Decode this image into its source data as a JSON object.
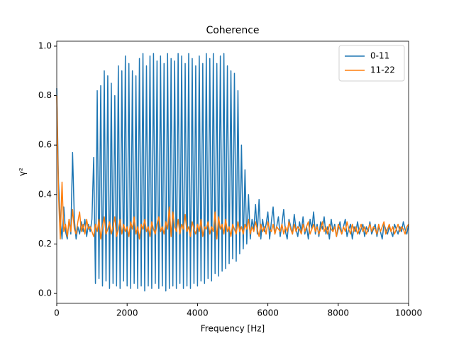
{
  "chart_data": {
    "type": "line",
    "title": "Coherence",
    "xlabel": "Frequency [Hz]",
    "ylabel": "γ²",
    "x": [
      0,
      50,
      100,
      150,
      200,
      250,
      300,
      350,
      400,
      450,
      500,
      550,
      600,
      650,
      700,
      750,
      800,
      850,
      900,
      950,
      1000,
      1050,
      1100,
      1150,
      1200,
      1250,
      1300,
      1350,
      1400,
      1450,
      1500,
      1550,
      1600,
      1650,
      1700,
      1750,
      1800,
      1850,
      1900,
      1950,
      2000,
      2050,
      2100,
      2150,
      2200,
      2250,
      2300,
      2350,
      2400,
      2450,
      2500,
      2550,
      2600,
      2650,
      2700,
      2750,
      2800,
      2850,
      2900,
      2950,
      3000,
      3050,
      3100,
      3150,
      3200,
      3250,
      3300,
      3350,
      3400,
      3450,
      3500,
      3550,
      3600,
      3650,
      3700,
      3750,
      3800,
      3850,
      3900,
      3950,
      4000,
      4050,
      4100,
      4150,
      4200,
      4250,
      4300,
      4350,
      4400,
      4450,
      4500,
      4550,
      4600,
      4650,
      4700,
      4750,
      4800,
      4850,
      4900,
      4950,
      5000,
      5050,
      5100,
      5150,
      5200,
      5250,
      5300,
      5350,
      5400,
      5450,
      5500,
      5550,
      5600,
      5650,
      5700,
      5750,
      5800,
      5850,
      5900,
      5950,
      6000,
      6050,
      6100,
      6150,
      6200,
      6250,
      6300,
      6350,
      6400,
      6450,
      6500,
      6550,
      6600,
      6650,
      6700,
      6750,
      6800,
      6850,
      6900,
      6950,
      7000,
      7050,
      7100,
      7150,
      7200,
      7250,
      7300,
      7350,
      7400,
      7450,
      7500,
      7550,
      7600,
      7650,
      7700,
      7750,
      7800,
      7850,
      7900,
      7950,
      8000,
      8050,
      8100,
      8150,
      8200,
      8250,
      8300,
      8350,
      8400,
      8450,
      8500,
      8550,
      8600,
      8650,
      8700,
      8750,
      8800,
      8850,
      8900,
      8950,
      9000,
      9050,
      9100,
      9150,
      9200,
      9250,
      9300,
      9350,
      9400,
      9450,
      9500,
      9550,
      9600,
      9650,
      9700,
      9750,
      9800,
      9850,
      9900,
      9950,
      10000
    ],
    "series": [
      {
        "name": "0-11",
        "color": "#1f77b4",
        "values": [
          0.83,
          0.45,
          0.3,
          0.22,
          0.35,
          0.25,
          0.22,
          0.3,
          0.24,
          0.57,
          0.3,
          0.22,
          0.27,
          0.24,
          0.29,
          0.25,
          0.3,
          0.23,
          0.28,
          0.25,
          0.3,
          0.55,
          0.04,
          0.82,
          0.06,
          0.84,
          0.03,
          0.9,
          0.05,
          0.88,
          0.02,
          0.85,
          0.04,
          0.8,
          0.03,
          0.92,
          0.02,
          0.9,
          0.05,
          0.96,
          0.03,
          0.93,
          0.02,
          0.9,
          0.04,
          0.88,
          0.02,
          0.95,
          0.03,
          0.97,
          0.01,
          0.92,
          0.03,
          0.96,
          0.02,
          0.97,
          0.04,
          0.94,
          0.02,
          0.96,
          0.03,
          0.93,
          0.01,
          0.97,
          0.02,
          0.95,
          0.03,
          0.94,
          0.02,
          0.97,
          0.04,
          0.96,
          0.02,
          0.93,
          0.03,
          0.97,
          0.02,
          0.95,
          0.04,
          0.92,
          0.03,
          0.96,
          0.05,
          0.93,
          0.04,
          0.97,
          0.06,
          0.95,
          0.05,
          0.97,
          0.08,
          0.93,
          0.07,
          0.96,
          0.09,
          0.97,
          0.1,
          0.92,
          0.12,
          0.9,
          0.14,
          0.89,
          0.13,
          0.82,
          0.16,
          0.6,
          0.18,
          0.5,
          0.2,
          0.4,
          0.22,
          0.3,
          0.26,
          0.36,
          0.24,
          0.38,
          0.22,
          0.3,
          0.25,
          0.28,
          0.33,
          0.22,
          0.29,
          0.35,
          0.24,
          0.27,
          0.31,
          0.23,
          0.28,
          0.34,
          0.25,
          0.22,
          0.3,
          0.27,
          0.24,
          0.32,
          0.26,
          0.23,
          0.29,
          0.25,
          0.31,
          0.24,
          0.27,
          0.22,
          0.3,
          0.26,
          0.33,
          0.24,
          0.28,
          0.23,
          0.29,
          0.26,
          0.31,
          0.24,
          0.27,
          0.22,
          0.3,
          0.25,
          0.28,
          0.23,
          0.26,
          0.29,
          0.24,
          0.27,
          0.3,
          0.23,
          0.26,
          0.28,
          0.22,
          0.27,
          0.25,
          0.29,
          0.24,
          0.26,
          0.28,
          0.23,
          0.27,
          0.25,
          0.29,
          0.24,
          0.26,
          0.28,
          0.23,
          0.27,
          0.25,
          0.22,
          0.28,
          0.26,
          0.24,
          0.27,
          0.25,
          0.23,
          0.28,
          0.26,
          0.24,
          0.27,
          0.25,
          0.29,
          0.26,
          0.24,
          0.28
        ]
      },
      {
        "name": "11-22",
        "color": "#ff7f0e",
        "values": [
          0.8,
          0.4,
          0.22,
          0.45,
          0.25,
          0.28,
          0.23,
          0.3,
          0.25,
          0.34,
          0.26,
          0.24,
          0.29,
          0.33,
          0.25,
          0.28,
          0.24,
          0.3,
          0.26,
          0.27,
          0.25,
          0.23,
          0.28,
          0.25,
          0.3,
          0.22,
          0.27,
          0.31,
          0.24,
          0.26,
          0.29,
          0.24,
          0.27,
          0.31,
          0.23,
          0.26,
          0.3,
          0.24,
          0.28,
          0.25,
          0.27,
          0.23,
          0.29,
          0.26,
          0.31,
          0.24,
          0.27,
          0.22,
          0.28,
          0.26,
          0.3,
          0.25,
          0.27,
          0.23,
          0.29,
          0.26,
          0.24,
          0.28,
          0.31,
          0.25,
          0.27,
          0.24,
          0.29,
          0.26,
          0.35,
          0.23,
          0.33,
          0.27,
          0.25,
          0.3,
          0.24,
          0.28,
          0.26,
          0.32,
          0.25,
          0.27,
          0.23,
          0.29,
          0.26,
          0.24,
          0.28,
          0.25,
          0.3,
          0.23,
          0.27,
          0.26,
          0.29,
          0.24,
          0.27,
          0.25,
          0.33,
          0.22,
          0.31,
          0.26,
          0.28,
          0.24,
          0.3,
          0.25,
          0.27,
          0.23,
          0.28,
          0.26,
          0.24,
          0.29,
          0.25,
          0.27,
          0.24,
          0.28,
          0.26,
          0.3,
          0.24,
          0.27,
          0.25,
          0.29,
          0.26,
          0.23,
          0.28,
          0.25,
          0.27,
          0.24,
          0.29,
          0.26,
          0.25,
          0.28,
          0.24,
          0.27,
          0.26,
          0.25,
          0.28,
          0.24,
          0.27,
          0.25,
          0.29,
          0.26,
          0.24,
          0.28,
          0.25,
          0.27,
          0.26,
          0.24,
          0.28,
          0.25,
          0.27,
          0.29,
          0.24,
          0.26,
          0.28,
          0.25,
          0.27,
          0.24,
          0.26,
          0.29,
          0.25,
          0.27,
          0.24,
          0.28,
          0.26,
          0.25,
          0.27,
          0.23,
          0.28,
          0.26,
          0.24,
          0.27,
          0.25,
          0.29,
          0.26,
          0.24,
          0.28,
          0.25,
          0.27,
          0.24,
          0.26,
          0.28,
          0.25,
          0.27,
          0.24,
          0.26,
          0.28,
          0.25,
          0.27,
          0.26,
          0.24,
          0.28,
          0.25,
          0.27,
          0.29,
          0.24,
          0.26,
          0.28,
          0.25,
          0.27,
          0.24,
          0.26,
          0.28,
          0.25,
          0.27,
          0.26,
          0.24,
          0.27,
          0.28
        ]
      }
    ],
    "xlim": [
      0,
      10000
    ],
    "xticks": [
      0,
      2000,
      4000,
      6000,
      8000,
      10000
    ],
    "ylim": [
      -0.04,
      1.02
    ],
    "yticks": [
      {
        "value": 0,
        "label": "0.0"
      },
      0.2,
      0.4,
      0.6,
      0.8,
      {
        "value": 1,
        "label": "1.0"
      }
    ],
    "grid": false,
    "legend": "upper right"
  }
}
